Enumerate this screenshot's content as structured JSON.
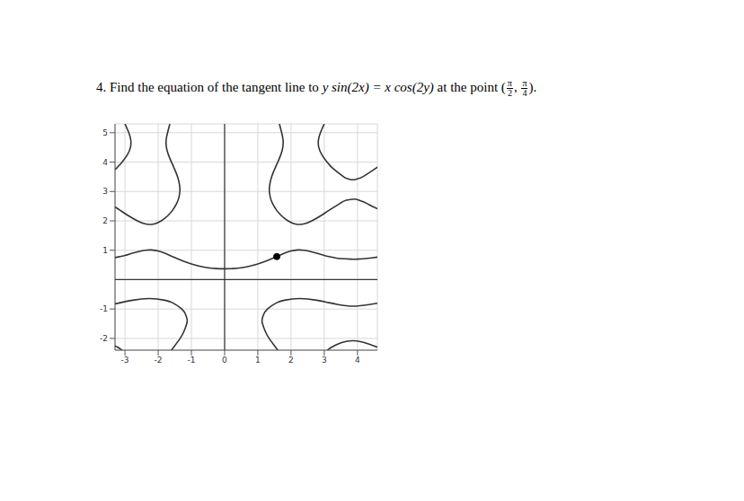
{
  "question": {
    "number": "4.",
    "text": "Find the equation of the tangent line to",
    "equation": "y sin(2x) = x cos(2y)",
    "text2": "at the point",
    "point": {
      "prefix": "(",
      "x_num": "π",
      "x_den": "2",
      "sep": ",",
      "y_num": "π",
      "y_den": "4",
      "suffix": ")."
    }
  },
  "chart_data": {
    "type": "line",
    "xlim": [
      -3.3,
      4.6
    ],
    "ylim": [
      -2.4,
      5.3
    ],
    "xticks": [
      -3,
      -2,
      -1,
      0,
      1,
      2,
      3,
      4
    ],
    "yticks": [
      -2,
      -1,
      1,
      2,
      3,
      4,
      5
    ],
    "grid": true,
    "series": [
      {
        "type": "line",
        "marker": "none",
        "color": "#333333",
        "x": [
          -3.3,
          -3.0,
          -2.8,
          -2.6,
          -2.4,
          -2.2,
          -2.0,
          -1.8,
          -1.57,
          -1.25,
          -1.0,
          -0.75,
          -0.5,
          -0.25,
          0,
          0.25,
          0.5,
          0.75,
          1.0,
          1.25,
          1.57,
          1.8,
          2.0,
          2.2,
          2.4,
          2.6,
          2.8,
          3.0,
          3.14,
          3.3,
          3.5,
          3.8,
          4.0,
          4.3,
          4.6
        ],
        "values": [
          0.75,
          0.823,
          0.89,
          0.95,
          1.0,
          1.01,
          0.975,
          0.897,
          0.785,
          0.633,
          0.532,
          0.458,
          0.405,
          0.378,
          0.37,
          0.378,
          0.405,
          0.458,
          0.532,
          0.633,
          0.785,
          0.897,
          0.975,
          1.01,
          1.0,
          0.95,
          0.89,
          0.823,
          0.785,
          0.75,
          0.717,
          0.697,
          0.698,
          0.723,
          0.767
        ]
      },
      {
        "type": "line",
        "marker": "none",
        "color": "#333333",
        "x": [
          1.65,
          1.718,
          1.76,
          1.752,
          1.692,
          1.6,
          1.57,
          1.522,
          1.415,
          1.355,
          1.347,
          1.376,
          1.44,
          1.57,
          1.69,
          1.785,
          1.91,
          2.1,
          2.25,
          2.4,
          2.625,
          2.93,
          3.14,
          3.48,
          3.66,
          3.9,
          4.05,
          4.27,
          4.4,
          4.6
        ],
        "values": [
          5.3,
          5.0,
          4.75,
          4.5,
          4.25,
          4.0,
          3.93,
          3.8,
          3.5,
          3.2,
          3.0,
          2.8,
          2.6,
          2.356,
          2.2,
          2.1,
          2.0,
          1.9,
          1.88,
          1.9,
          2.0,
          2.2,
          2.356,
          2.6,
          2.7,
          2.74,
          2.7,
          2.6,
          2.52,
          2.415
        ]
      },
      {
        "type": "line",
        "marker": "none",
        "color": "#333333",
        "x": [
          -1.65,
          -1.718,
          -1.76,
          -1.752,
          -1.692,
          -1.6,
          -1.57,
          -1.522,
          -1.415,
          -1.355,
          -1.347,
          -1.376,
          -1.44,
          -1.57,
          -1.69,
          -1.785,
          -1.91,
          -2.1,
          -2.25,
          -2.4,
          -2.625,
          -2.93,
          -3.14,
          -3.3
        ],
        "values": [
          5.3,
          5.0,
          4.75,
          4.5,
          4.25,
          4.0,
          3.93,
          3.8,
          3.5,
          3.2,
          3.0,
          2.8,
          2.6,
          2.356,
          2.2,
          2.1,
          2.0,
          1.9,
          1.88,
          1.9,
          2.0,
          2.2,
          2.356,
          2.474
        ]
      },
      {
        "type": "line",
        "marker": "none",
        "color": "#333333",
        "x": [
          3.0,
          2.885,
          2.825,
          2.835,
          2.928,
          3.085,
          3.14,
          3.248,
          3.583,
          3.67,
          3.86,
          4.05,
          4.16,
          4.565,
          4.6
        ],
        "values": [
          5.3,
          5.0,
          4.75,
          4.5,
          4.25,
          4.0,
          3.93,
          3.8,
          3.5,
          3.45,
          3.4,
          3.45,
          3.5,
          3.8,
          3.83
        ]
      },
      {
        "type": "line",
        "marker": "none",
        "color": "#333333",
        "x": [
          -3.0,
          -2.885,
          -2.825,
          -2.835,
          -2.928,
          -3.085,
          -3.14,
          -3.248,
          -3.3
        ],
        "values": [
          5.3,
          5.0,
          4.75,
          4.5,
          4.25,
          4.0,
          3.93,
          3.8,
          3.75
        ]
      },
      {
        "type": "line",
        "marker": "none",
        "color": "#333333",
        "x": [
          4.6,
          4.35,
          3.86,
          3.42,
          3.14,
          2.77,
          2.25,
          1.8,
          1.57,
          1.29,
          1.17,
          1.13,
          1.14,
          1.22,
          1.34,
          1.535,
          1.6
        ],
        "values": [
          -0.805,
          -0.85,
          -0.905,
          -0.85,
          -0.785,
          -0.7,
          -0.645,
          -0.7,
          -0.785,
          -1.0,
          -1.2,
          -1.35,
          -1.5,
          -1.75,
          -2.0,
          -2.3,
          -2.4
        ]
      },
      {
        "type": "line",
        "marker": "none",
        "color": "#333333",
        "x": [
          -3.3,
          -3.14,
          -2.77,
          -2.25,
          -1.8,
          -1.57,
          -1.29,
          -1.17,
          -1.13,
          -1.14,
          -1.22,
          -1.34,
          -1.535,
          -1.6
        ],
        "values": [
          -0.822,
          -0.785,
          -0.7,
          -0.645,
          -0.7,
          -0.785,
          -1.0,
          -1.2,
          -1.35,
          -1.5,
          -1.75,
          -2.0,
          -2.3,
          -2.4
        ]
      },
      {
        "type": "line",
        "marker": "none",
        "color": "#333333",
        "x": [
          3.09,
          3.14,
          3.22,
          3.39,
          3.66,
          3.86,
          4.06,
          4.37,
          4.6
        ],
        "values": [
          -2.4,
          -2.356,
          -2.3,
          -2.2,
          -2.1,
          -2.08,
          -2.1,
          -2.2,
          -2.3
        ]
      },
      {
        "type": "line",
        "marker": "none",
        "color": "#333333",
        "x": [
          -3.3,
          -3.22,
          -3.14,
          -3.09
        ],
        "values": [
          -2.25,
          -2.3,
          -2.356,
          -2.4
        ]
      },
      {
        "type": "scatter",
        "marker": "circle",
        "color": "#000000",
        "x": [
          1.571
        ],
        "values": [
          0.785
        ]
      }
    ]
  }
}
